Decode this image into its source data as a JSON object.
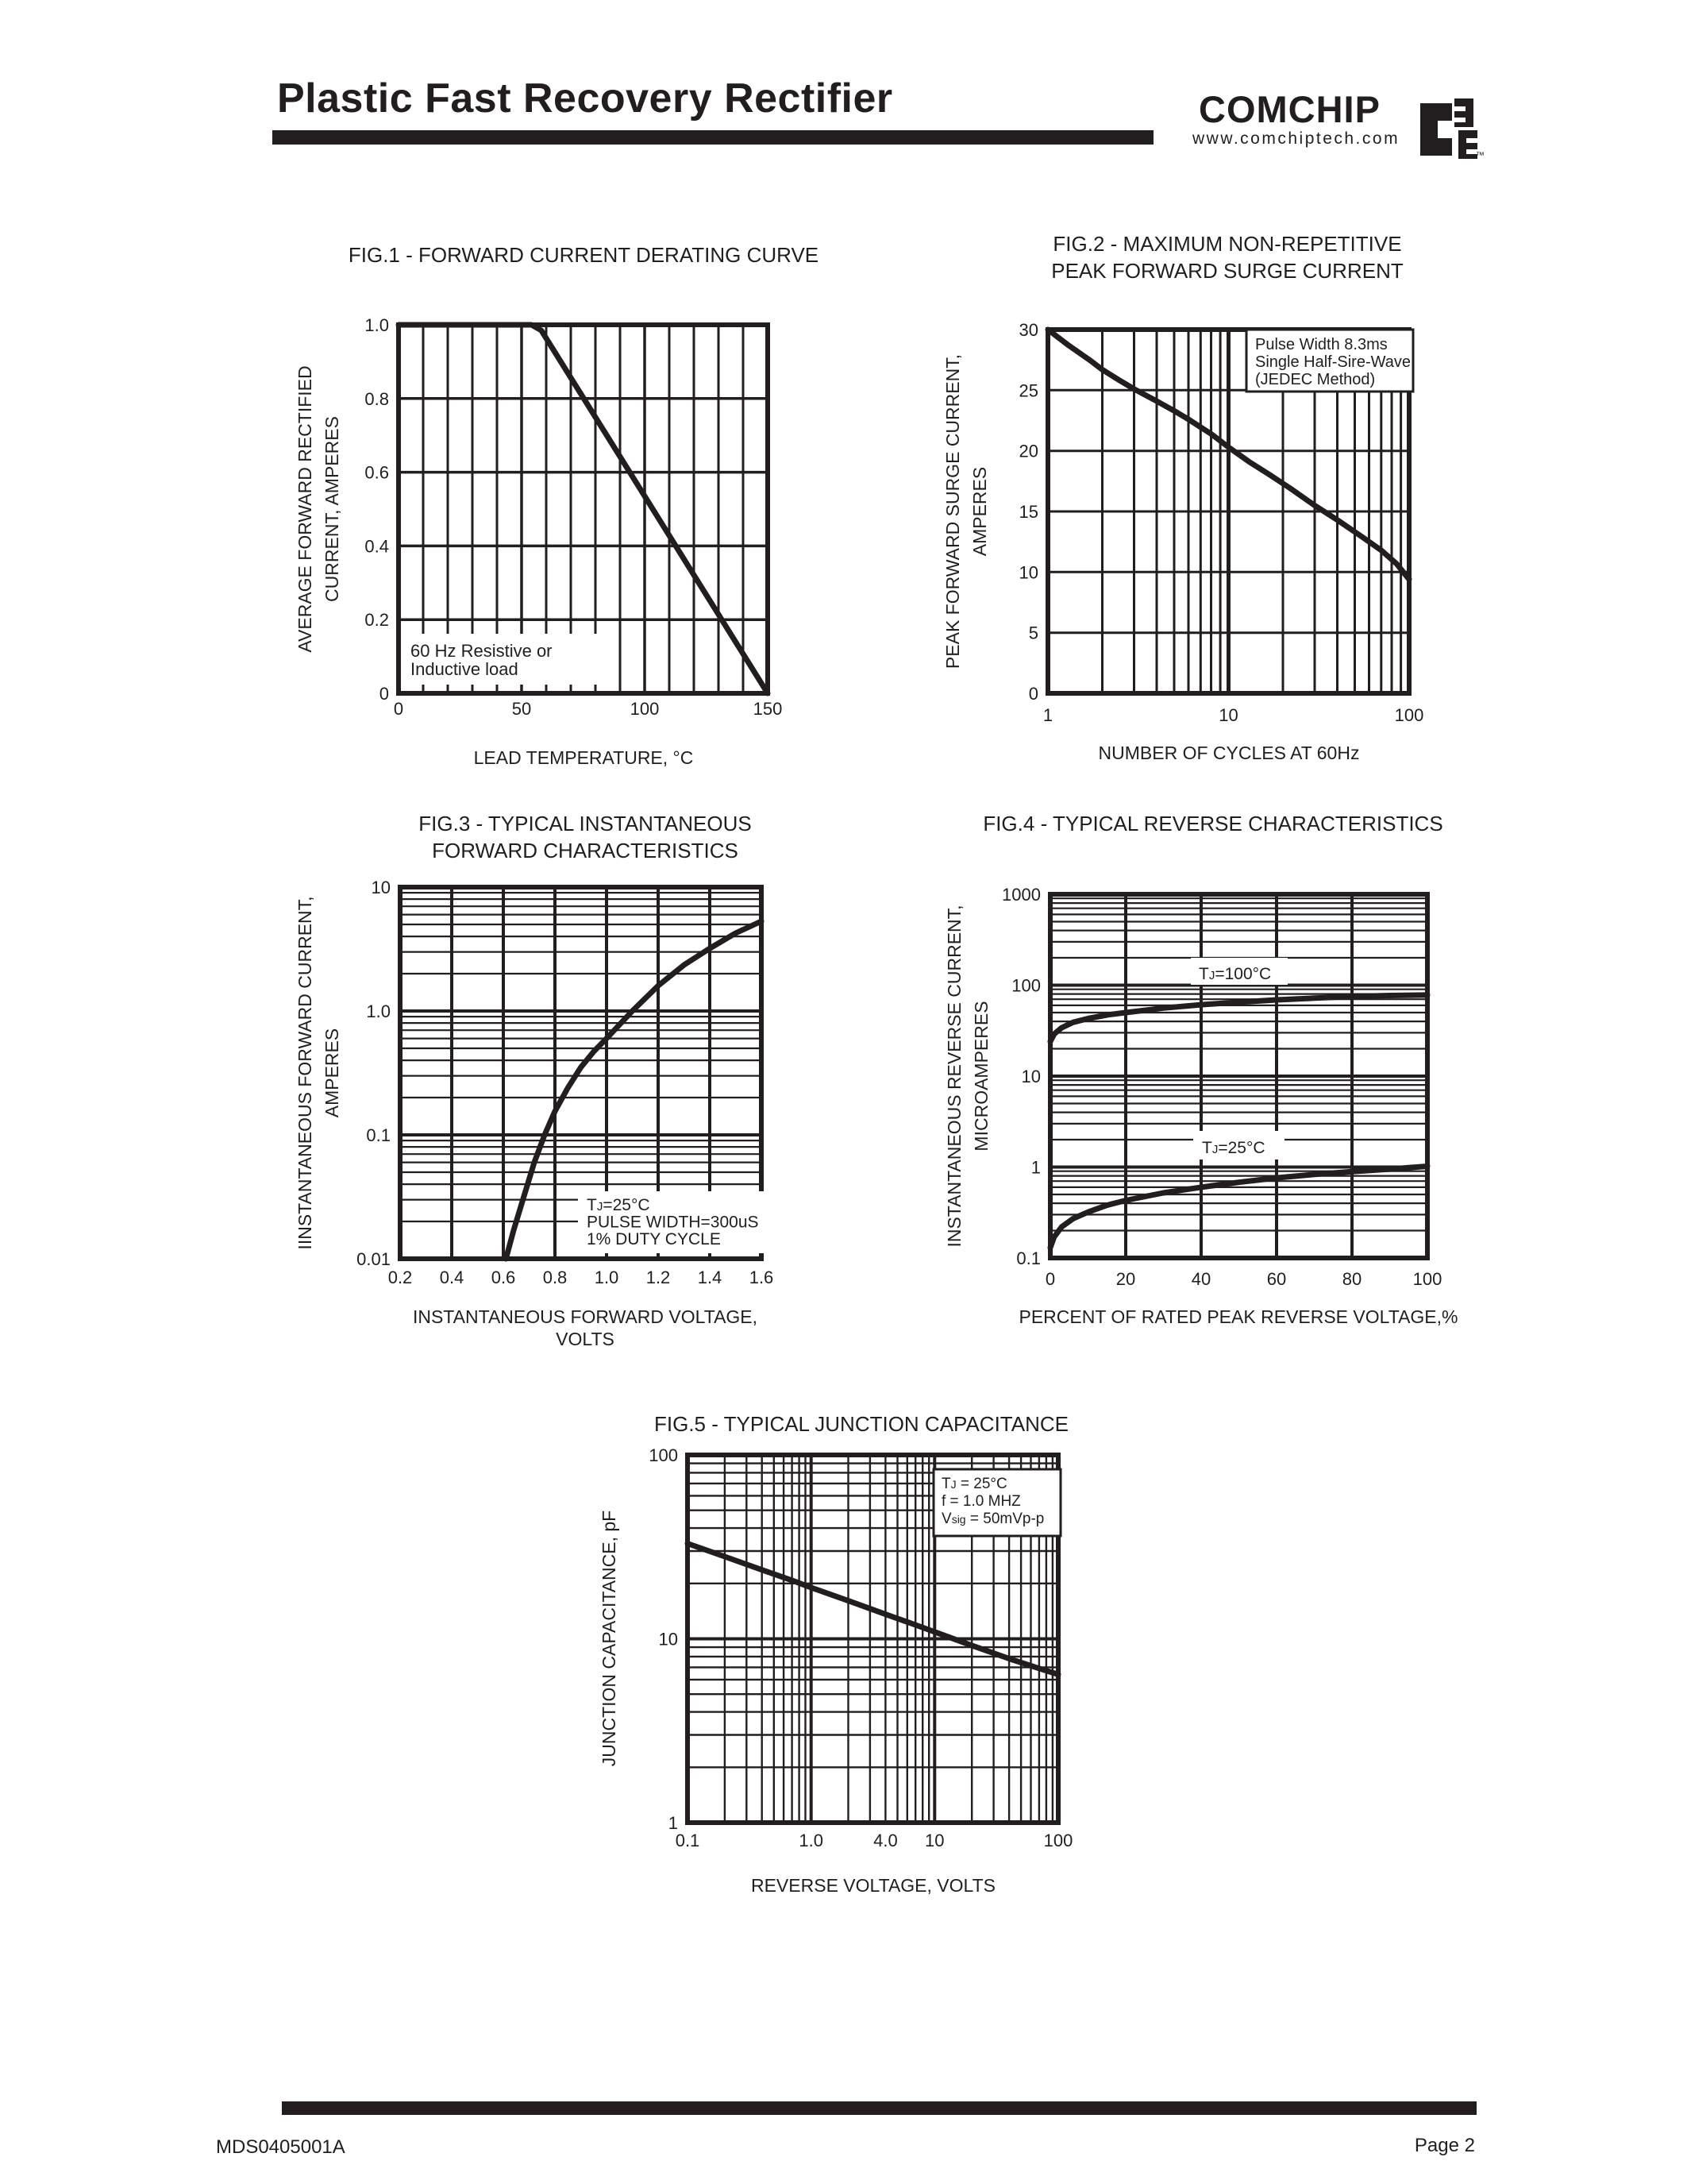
{
  "page": {
    "title": "Plastic Fast Recovery Rectifier",
    "brand": {
      "name": "COMCHIP",
      "website": "www.comchiptech.com",
      "trademark": "™"
    },
    "footer": {
      "doc_number": "MDS0405001A",
      "page_label": "Page 2"
    },
    "ink_color": "#221e1f",
    "paper_color": "#ffffff"
  },
  "chart_data": [
    {
      "id": "fig1",
      "type": "line",
      "title_lines": [
        "FIG.1 - FORWARD CURRENT DERATING CURVE"
      ],
      "xlabel_lines": [
        "LEAD TEMPERATURE, °C"
      ],
      "ylabel_lines": [
        "AVERAGE FORWARD RECTIFIED",
        "CURRENT, AMPERES"
      ],
      "x": {
        "scale": "linear",
        "min": 0,
        "max": 150,
        "ticks": [
          0,
          50,
          100,
          150
        ],
        "tick_labels": [
          "0",
          "50",
          "100",
          "150"
        ],
        "grid_step": 10
      },
      "y": {
        "scale": "linear",
        "min": 0,
        "max": 1.0,
        "ticks": [
          1.0,
          0.8,
          0.6,
          0.4,
          0.2,
          0
        ],
        "tick_labels": [
          "1.0",
          "0.8",
          "0.6",
          "0.4",
          "0.2",
          "0"
        ],
        "grid_step": 0.2
      },
      "series": [
        {
          "name": "derating-curve",
          "points": [
            [
              0,
              1.0
            ],
            [
              54,
              1.0
            ],
            [
              58,
              0.985
            ],
            [
              150,
              0
            ]
          ]
        }
      ],
      "annotations": [
        {
          "id": "load-note",
          "lines": [
            "60 Hz Resistive or",
            "Inductive load"
          ],
          "boxed": false
        }
      ]
    },
    {
      "id": "fig2",
      "type": "line",
      "title_lines": [
        "FIG.2 - MAXIMUM NON-REPETITIVE",
        "PEAK FORWARD SURGE CURRENT"
      ],
      "xlabel_lines": [
        "NUMBER OF CYCLES AT 60Hz"
      ],
      "ylabel_lines": [
        "PEAK FORWARD SURGE CURRENT,",
        "AMPERES"
      ],
      "x": {
        "scale": "log",
        "min": 1,
        "max": 100,
        "ticks": [
          1,
          10,
          100
        ],
        "tick_labels": [
          "1",
          "10",
          "100"
        ]
      },
      "y": {
        "scale": "linear",
        "min": 0,
        "max": 30,
        "ticks": [
          30,
          25,
          20,
          15,
          10,
          5,
          0
        ],
        "tick_labels": [
          "30",
          "25",
          "20",
          "15",
          "10",
          "5",
          "0"
        ],
        "grid_step": 5
      },
      "series": [
        {
          "name": "surge-current",
          "points": [
            [
              1,
              30
            ],
            [
              1.3,
              28.7
            ],
            [
              1.7,
              27.5
            ],
            [
              2,
              26.7
            ],
            [
              2.5,
              25.8
            ],
            [
              3,
              25.1
            ],
            [
              4,
              24.1
            ],
            [
              5,
              23.3
            ],
            [
              6,
              22.6
            ],
            [
              8,
              21.4
            ],
            [
              10,
              20.3
            ],
            [
              13,
              19.1
            ],
            [
              17,
              18.0
            ],
            [
              22,
              16.9
            ],
            [
              30,
              15.5
            ],
            [
              40,
              14.3
            ],
            [
              55,
              12.9
            ],
            [
              70,
              11.8
            ],
            [
              85,
              10.7
            ],
            [
              100,
              9.4
            ]
          ]
        }
      ],
      "annotations": [
        {
          "id": "pulse-note",
          "lines": [
            "Pulse Width 8.3ms",
            "Single Half-Sire-Wave",
            "(JEDEC Method)"
          ],
          "boxed": true
        }
      ]
    },
    {
      "id": "fig3",
      "type": "line",
      "title_lines": [
        "FIG.3 - TYPICAL INSTANTANEOUS",
        "FORWARD CHARACTERISTICS"
      ],
      "xlabel_lines": [
        "INSTANTANEOUS FORWARD VOLTAGE,",
        "VOLTS"
      ],
      "ylabel_lines": [
        "IINSTANTANEOUS FORWARD CURRENT,",
        "AMPERES"
      ],
      "x": {
        "scale": "linear",
        "min": 0.2,
        "max": 1.6,
        "ticks": [
          0.2,
          0.4,
          0.6,
          0.8,
          1.0,
          1.2,
          1.4,
          1.6
        ],
        "tick_labels": [
          "0.2",
          "0.4",
          "0.6",
          "0.8",
          "1.0",
          "1.2",
          "1.4",
          "1.6"
        ],
        "grid_step": 0.2
      },
      "y": {
        "scale": "log",
        "min": 0.01,
        "max": 10,
        "ticks": [
          10,
          1.0,
          0.1,
          0.01
        ],
        "tick_labels": [
          "10",
          "1.0",
          "0.1",
          "0.01"
        ]
      },
      "series": [
        {
          "name": "forward-characteristic",
          "points": [
            [
              0.61,
              0.01
            ],
            [
              0.64,
              0.017
            ],
            [
              0.68,
              0.032
            ],
            [
              0.72,
              0.06
            ],
            [
              0.76,
              0.1
            ],
            [
              0.8,
              0.155
            ],
            [
              0.85,
              0.24
            ],
            [
              0.9,
              0.35
            ],
            [
              0.95,
              0.47
            ],
            [
              1.0,
              0.6
            ],
            [
              1.1,
              1.0
            ],
            [
              1.2,
              1.6
            ],
            [
              1.3,
              2.35
            ],
            [
              1.4,
              3.2
            ],
            [
              1.5,
              4.25
            ],
            [
              1.6,
              5.3
            ]
          ]
        }
      ],
      "annotations": [
        {
          "id": "conditions-note",
          "lines": [
            "TJ=25°C",
            "PULSE WIDTH=300uS",
            "1% DUTY CYCLE"
          ],
          "boxed": false
        }
      ]
    },
    {
      "id": "fig4",
      "type": "line",
      "title_lines": [
        "FIG.4 - TYPICAL REVERSE CHARACTERISTICS"
      ],
      "xlabel_lines": [
        "PERCENT OF RATED PEAK REVERSE VOLTAGE,%"
      ],
      "ylabel_lines": [
        "INSTANTANEOUS REVERSE CURRENT,",
        "MICROAMPERES"
      ],
      "x": {
        "scale": "linear",
        "min": 0,
        "max": 100,
        "ticks": [
          0,
          20,
          40,
          60,
          80,
          100
        ],
        "tick_labels": [
          "0",
          "20",
          "40",
          "60",
          "80",
          "100"
        ],
        "grid_step": 20
      },
      "y": {
        "scale": "log",
        "min": 0.1,
        "max": 1000,
        "ticks": [
          1000,
          100,
          10,
          1,
          0.1
        ],
        "tick_labels": [
          "1000",
          "100",
          "10",
          "1",
          "0.1"
        ]
      },
      "series": [
        {
          "name": "reverse-current-tj-100c",
          "points": [
            [
              0,
              24
            ],
            [
              1,
              29
            ],
            [
              3,
              34
            ],
            [
              6,
              39
            ],
            [
              10,
              43
            ],
            [
              15,
              47
            ],
            [
              20,
              50
            ],
            [
              30,
              56
            ],
            [
              40,
              61
            ],
            [
              50,
              65
            ],
            [
              60,
              69
            ],
            [
              70,
              72
            ],
            [
              80,
              75
            ],
            [
              90,
              77
            ],
            [
              100,
              78
            ]
          ]
        },
        {
          "name": "reverse-current-tj-25c",
          "points": [
            [
              0,
              0.13
            ],
            [
              1,
              0.17
            ],
            [
              3,
              0.22
            ],
            [
              6,
              0.27
            ],
            [
              10,
              0.32
            ],
            [
              15,
              0.38
            ],
            [
              20,
              0.43
            ],
            [
              30,
              0.52
            ],
            [
              40,
              0.6
            ],
            [
              50,
              0.68
            ],
            [
              60,
              0.76
            ],
            [
              70,
              0.83
            ],
            [
              80,
              0.89
            ],
            [
              90,
              0.95
            ],
            [
              100,
              1.02
            ]
          ]
        }
      ],
      "annotations": [
        {
          "id": "t100-label",
          "lines": [
            "TJ=100°C"
          ],
          "boxed": false
        },
        {
          "id": "t25-label",
          "lines": [
            "TJ=25°C"
          ],
          "boxed": false
        }
      ]
    },
    {
      "id": "fig5",
      "type": "line",
      "title_lines": [
        "FIG.5 - TYPICAL JUNCTION CAPACITANCE"
      ],
      "xlabel_lines": [
        "REVERSE VOLTAGE, VOLTS"
      ],
      "ylabel_lines": [
        "JUNCTION CAPACITANCE, pF"
      ],
      "x": {
        "scale": "log",
        "min": 0.1,
        "max": 100,
        "ticks": [
          0.1,
          1.0,
          4.0,
          10,
          100
        ],
        "tick_labels": [
          "0.1",
          "1.0",
          "4.0",
          "10",
          "100"
        ]
      },
      "y": {
        "scale": "log",
        "min": 1,
        "max": 100,
        "ticks": [
          100,
          10,
          1
        ],
        "tick_labels": [
          "100",
          "10",
          "1"
        ]
      },
      "series": [
        {
          "name": "junction-capacitance",
          "points": [
            [
              0.1,
              33
            ],
            [
              0.2,
              28
            ],
            [
              0.4,
              23.7
            ],
            [
              0.7,
              20.8
            ],
            [
              1.0,
              19
            ],
            [
              2,
              16.1
            ],
            [
              4,
              13.6
            ],
            [
              7,
              11.9
            ],
            [
              10,
              10.9
            ],
            [
              20,
              9.2
            ],
            [
              40,
              7.8
            ],
            [
              70,
              6.9
            ],
            [
              100,
              6.4
            ]
          ]
        }
      ],
      "annotations": [
        {
          "id": "conditions-note",
          "lines": [
            "TJ = 25°C",
            "f = 1.0 MHZ",
            "Vsig = 50mVp-p"
          ],
          "boxed": true
        }
      ]
    }
  ]
}
